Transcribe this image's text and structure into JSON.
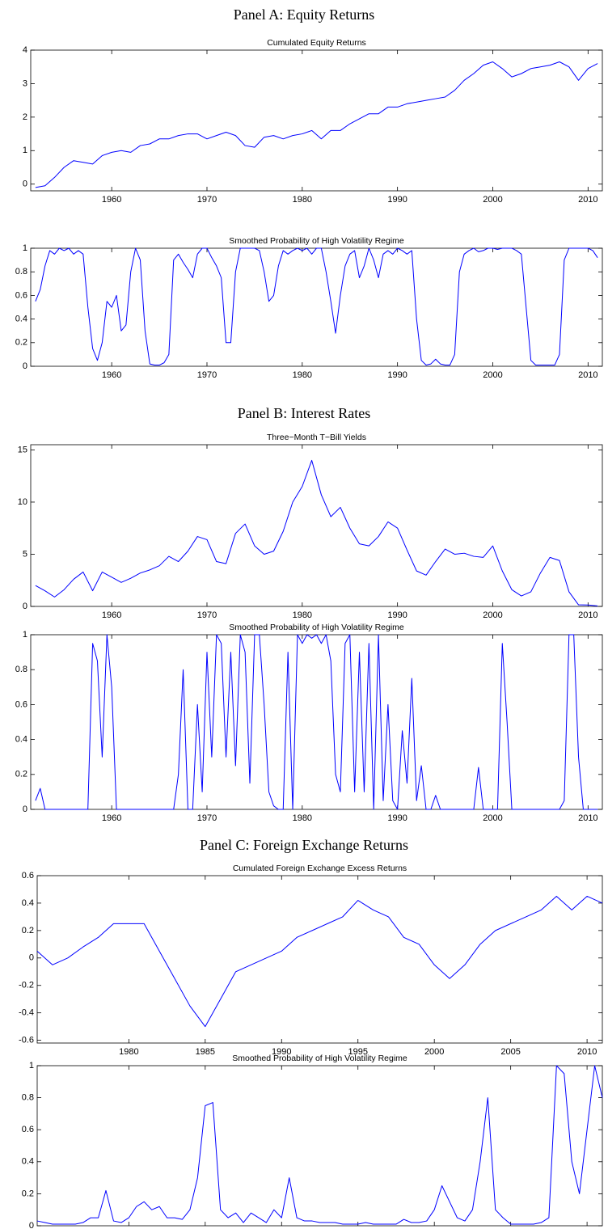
{
  "panels": [
    "Panel A: Equity Returns",
    "Panel B: Interest Rates",
    "Panel C: Foreign Exchange Returns"
  ],
  "chart_data": [
    {
      "type": "line",
      "title": "Cumulated Equity Returns",
      "color": "#0000ff",
      "x": [
        1952,
        1953,
        1954,
        1955,
        1956,
        1957,
        1958,
        1959,
        1960,
        1961,
        1962,
        1963,
        1964,
        1965,
        1966,
        1967,
        1968,
        1969,
        1970,
        1971,
        1972,
        1973,
        1974,
        1975,
        1976,
        1977,
        1978,
        1979,
        1980,
        1981,
        1982,
        1983,
        1984,
        1985,
        1986,
        1987,
        1988,
        1989,
        1990,
        1991,
        1992,
        1993,
        1994,
        1995,
        1996,
        1997,
        1998,
        1999,
        2000,
        2001,
        2002,
        2003,
        2004,
        2005,
        2006,
        2007,
        2008,
        2009,
        2010,
        2011
      ],
      "values": [
        -0.1,
        -0.05,
        0.2,
        0.5,
        0.7,
        0.65,
        0.6,
        0.85,
        0.95,
        1.0,
        0.95,
        1.15,
        1.2,
        1.35,
        1.35,
        1.45,
        1.5,
        1.5,
        1.35,
        1.45,
        1.55,
        1.45,
        1.15,
        1.1,
        1.4,
        1.45,
        1.35,
        1.45,
        1.5,
        1.6,
        1.35,
        1.6,
        1.6,
        1.8,
        1.95,
        2.1,
        2.1,
        2.3,
        2.3,
        2.4,
        2.45,
        2.5,
        2.55,
        2.6,
        2.8,
        3.1,
        3.3,
        3.55,
        3.65,
        3.45,
        3.2,
        3.3,
        3.45,
        3.5,
        3.55,
        3.65,
        3.5,
        3.1,
        3.45,
        3.6
      ],
      "xlim": [
        1951.5,
        2011.5
      ],
      "xticks": [
        1960,
        1970,
        1980,
        1990,
        2000,
        2010
      ],
      "ylim": [
        -0.2,
        4
      ],
      "yticks": [
        0,
        1,
        2,
        3,
        4
      ]
    },
    {
      "type": "line",
      "title": "Smoothed Probability of High Volatility Regime",
      "color": "#0000ff",
      "x": [
        1952,
        1952.5,
        1953,
        1953.5,
        1954,
        1954.5,
        1955,
        1955.5,
        1956,
        1956.5,
        1957,
        1957.5,
        1958,
        1958.5,
        1959,
        1959.5,
        1960,
        1960.5,
        1961,
        1961.5,
        1962,
        1962.5,
        1963,
        1963.5,
        1964,
        1964.5,
        1965,
        1965.5,
        1966,
        1966.5,
        1967,
        1967.5,
        1968,
        1968.5,
        1969,
        1969.5,
        1970,
        1970.5,
        1971,
        1971.5,
        1972,
        1972.5,
        1973,
        1973.5,
        1974,
        1974.5,
        1975,
        1975.5,
        1976,
        1976.5,
        1977,
        1977.5,
        1978,
        1978.5,
        1979,
        1979.5,
        1980,
        1980.5,
        1981,
        1981.5,
        1982,
        1982.5,
        1983,
        1983.5,
        1984,
        1984.5,
        1985,
        1985.5,
        1986,
        1986.5,
        1987,
        1987.5,
        1988,
        1988.5,
        1989,
        1989.5,
        1990,
        1990.5,
        1991,
        1991.5,
        1992,
        1992.5,
        1993,
        1993.5,
        1994,
        1994.5,
        1995,
        1995.5,
        1996,
        1996.5,
        1997,
        1997.5,
        1998,
        1998.5,
        1999,
        1999.5,
        2000,
        2000.5,
        2001,
        2001.5,
        2002,
        2002.5,
        2003,
        2003.5,
        2004,
        2004.5,
        2005,
        2005.5,
        2006,
        2006.5,
        2007,
        2007.5,
        2008,
        2008.5,
        2009,
        2009.5,
        2010,
        2010.5,
        2011
      ],
      "values": [
        0.55,
        0.65,
        0.85,
        0.98,
        0.95,
        1.0,
        0.98,
        1.0,
        0.95,
        0.98,
        0.95,
        0.5,
        0.15,
        0.05,
        0.2,
        0.55,
        0.5,
        0.6,
        0.3,
        0.35,
        0.8,
        1.0,
        0.9,
        0.3,
        0.02,
        0.01,
        0.01,
        0.03,
        0.1,
        0.9,
        0.95,
        0.88,
        0.82,
        0.75,
        0.95,
        1.0,
        1.0,
        0.92,
        0.85,
        0.75,
        0.2,
        0.2,
        0.8,
        1.0,
        1.0,
        1.0,
        1.0,
        0.98,
        0.8,
        0.55,
        0.6,
        0.85,
        0.98,
        0.95,
        0.98,
        1.0,
        0.98,
        1.0,
        0.95,
        1.0,
        1.0,
        0.8,
        0.55,
        0.28,
        0.6,
        0.85,
        0.95,
        0.98,
        0.75,
        0.85,
        1.0,
        0.9,
        0.75,
        0.95,
        0.98,
        0.95,
        1.0,
        0.98,
        0.95,
        0.98,
        0.4,
        0.05,
        0.01,
        0.02,
        0.06,
        0.02,
        0.01,
        0.01,
        0.1,
        0.8,
        0.95,
        0.98,
        1.0,
        0.97,
        0.98,
        1.0,
        1.0,
        0.99,
        1.0,
        1.0,
        1.0,
        0.98,
        0.95,
        0.5,
        0.05,
        0.01,
        0.01,
        0.01,
        0.01,
        0.01,
        0.1,
        0.9,
        1.0,
        1.0,
        1.0,
        1.0,
        1.0,
        0.98,
        0.92
      ],
      "xlim": [
        1951.5,
        2011.5
      ],
      "xticks": [
        1960,
        1970,
        1980,
        1990,
        2000,
        2010
      ],
      "ylim": [
        0,
        1
      ],
      "yticks": [
        0,
        0.2,
        0.4,
        0.6,
        0.8,
        1
      ]
    },
    {
      "type": "line",
      "title": "Three−Month T−Bill Yields",
      "color": "#0000ff",
      "x": [
        1952,
        1953,
        1954,
        1955,
        1956,
        1957,
        1958,
        1959,
        1960,
        1961,
        1962,
        1963,
        1964,
        1965,
        1966,
        1967,
        1968,
        1969,
        1970,
        1971,
        1972,
        1973,
        1974,
        1975,
        1976,
        1977,
        1978,
        1979,
        1980,
        1981,
        1982,
        1983,
        1984,
        1985,
        1986,
        1987,
        1988,
        1989,
        1990,
        1991,
        1992,
        1993,
        1994,
        1995,
        1996,
        1997,
        1998,
        1999,
        2000,
        2001,
        2002,
        2003,
        2004,
        2005,
        2006,
        2007,
        2008,
        2009,
        2010,
        2011
      ],
      "values": [
        2.0,
        1.5,
        0.9,
        1.6,
        2.6,
        3.3,
        1.5,
        3.3,
        2.8,
        2.3,
        2.7,
        3.2,
        3.5,
        3.9,
        4.8,
        4.3,
        5.3,
        6.7,
        6.4,
        4.3,
        4.1,
        7.0,
        7.9,
        5.8,
        5.0,
        5.3,
        7.2,
        10.0,
        11.5,
        14.0,
        10.7,
        8.6,
        9.5,
        7.5,
        6.0,
        5.8,
        6.7,
        8.1,
        7.5,
        5.4,
        3.4,
        3.0,
        4.3,
        5.5,
        5.0,
        5.1,
        4.8,
        4.7,
        5.8,
        3.4,
        1.6,
        1.0,
        1.4,
        3.2,
        4.7,
        4.4,
        1.4,
        0.15,
        0.14,
        0.05
      ],
      "xlim": [
        1951.5,
        2011.5
      ],
      "xticks": [
        1960,
        1970,
        1980,
        1990,
        2000,
        2010
      ],
      "ylim": [
        0,
        15.5
      ],
      "yticks": [
        0,
        5,
        10,
        15
      ]
    },
    {
      "type": "line",
      "title": "Smoothed Probability of High Volatility Regime",
      "color": "#0000ff",
      "x": [
        1952,
        1952.5,
        1953,
        1953.5,
        1954,
        1954.5,
        1955,
        1955.5,
        1956,
        1956.5,
        1957,
        1957.5,
        1958,
        1958.5,
        1959,
        1959.5,
        1960,
        1960.5,
        1961,
        1961.5,
        1962,
        1962.5,
        1963,
        1963.5,
        1964,
        1964.5,
        1965,
        1965.5,
        1966,
        1966.5,
        1967,
        1967.5,
        1968,
        1968.5,
        1969,
        1969.5,
        1970,
        1970.5,
        1971,
        1971.5,
        1972,
        1972.5,
        1973,
        1973.5,
        1974,
        1974.5,
        1975,
        1975.5,
        1976,
        1976.5,
        1977,
        1977.5,
        1978,
        1978.5,
        1979,
        1979.5,
        1980,
        1980.5,
        1981,
        1981.5,
        1982,
        1982.5,
        1983,
        1983.5,
        1984,
        1984.5,
        1985,
        1985.5,
        1986,
        1986.5,
        1987,
        1987.5,
        1988,
        1988.5,
        1989,
        1989.5,
        1990,
        1990.5,
        1991,
        1991.5,
        1992,
        1992.5,
        1993,
        1993.5,
        1994,
        1994.5,
        1995,
        1995.5,
        1996,
        1996.5,
        1997,
        1997.5,
        1998,
        1998.5,
        1999,
        1999.5,
        2000,
        2000.5,
        2001,
        2001.5,
        2002,
        2002.5,
        2003,
        2003.5,
        2004,
        2004.5,
        2005,
        2005.5,
        2006,
        2006.5,
        2007,
        2007.5,
        2008,
        2008.5,
        2009,
        2009.5,
        2010,
        2010.5,
        2011
      ],
      "values": [
        0.05,
        0.12,
        0,
        0,
        0,
        0,
        0,
        0,
        0,
        0,
        0,
        0,
        0.95,
        0.85,
        0.3,
        1.0,
        0.7,
        0,
        0,
        0,
        0,
        0,
        0,
        0,
        0,
        0,
        0,
        0,
        0,
        0,
        0.2,
        0.8,
        0,
        0,
        0.6,
        0.1,
        0.9,
        0.3,
        1.0,
        0.95,
        0.3,
        0.9,
        0.25,
        1.0,
        0.9,
        0.15,
        1.0,
        1.0,
        0.6,
        0.1,
        0.02,
        0,
        0,
        0.9,
        0,
        1.0,
        0.95,
        1.0,
        0.98,
        1.0,
        0.95,
        1.0,
        0.85,
        0.2,
        0.1,
        0.95,
        1.0,
        0.1,
        0.9,
        0.1,
        0.95,
        0,
        1.0,
        0.05,
        0.6,
        0.05,
        0,
        0.45,
        0.15,
        0.75,
        0.05,
        0.25,
        0,
        0,
        0.08,
        0,
        0,
        0,
        0,
        0,
        0,
        0,
        0,
        0.24,
        0,
        0,
        0,
        0,
        0.95,
        0.5,
        0,
        0,
        0,
        0,
        0,
        0,
        0,
        0,
        0,
        0,
        0,
        0.05,
        1.0,
        1.0,
        0.3,
        0,
        0,
        0,
        0
      ],
      "xlim": [
        1951.5,
        2011.5
      ],
      "xticks": [
        1960,
        1970,
        1980,
        1990,
        2000,
        2010
      ],
      "ylim": [
        0,
        1
      ],
      "yticks": [
        0,
        0.2,
        0.4,
        0.6,
        0.8,
        1
      ]
    },
    {
      "type": "line",
      "title": "Cumulated Foreign Exchange Excess Returns",
      "color": "#0000ff",
      "x": [
        1974,
        1975,
        1976,
        1977,
        1978,
        1979,
        1980,
        1981,
        1982,
        1983,
        1984,
        1985,
        1986,
        1987,
        1988,
        1989,
        1990,
        1991,
        1992,
        1993,
        1994,
        1995,
        1996,
        1997,
        1998,
        1999,
        2000,
        2001,
        2002,
        2003,
        2004,
        2005,
        2006,
        2007,
        2008,
        2009,
        2010,
        2011
      ],
      "values": [
        0.05,
        -0.05,
        0.0,
        0.08,
        0.15,
        0.25,
        0.25,
        0.25,
        0.05,
        -0.15,
        -0.35,
        -0.5,
        -0.3,
        -0.1,
        -0.05,
        0.0,
        0.05,
        0.15,
        0.2,
        0.25,
        0.3,
        0.42,
        0.35,
        0.3,
        0.15,
        0.1,
        -0.05,
        -0.15,
        -0.05,
        0.1,
        0.2,
        0.25,
        0.3,
        0.35,
        0.45,
        0.35,
        0.45,
        0.4
      ],
      "xlim": [
        1974,
        2011
      ],
      "xticks": [
        1980,
        1985,
        1990,
        1995,
        2000,
        2005,
        2010
      ],
      "ylim": [
        -0.62,
        0.6
      ],
      "yticks": [
        -0.6,
        -0.4,
        -0.2,
        0,
        0.2,
        0.4,
        0.6
      ]
    },
    {
      "type": "line",
      "title": "Smoothed Probability of High Volatility Regime",
      "color": "#0000ff",
      "x": [
        1974,
        1974.5,
        1975,
        1975.5,
        1976,
        1976.5,
        1977,
        1977.5,
        1978,
        1978.5,
        1979,
        1979.5,
        1980,
        1980.5,
        1981,
        1981.5,
        1982,
        1982.5,
        1983,
        1983.5,
        1984,
        1984.5,
        1985,
        1985.5,
        1986,
        1986.5,
        1987,
        1987.5,
        1988,
        1988.5,
        1989,
        1989.5,
        1990,
        1990.5,
        1991,
        1991.5,
        1992,
        1992.5,
        1993,
        1993.5,
        1994,
        1994.5,
        1995,
        1995.5,
        1996,
        1996.5,
        1997,
        1997.5,
        1998,
        1998.5,
        1999,
        1999.5,
        2000,
        2000.5,
        2001,
        2001.5,
        2002,
        2002.5,
        2003,
        2003.5,
        2004,
        2004.5,
        2005,
        2005.5,
        2006,
        2006.5,
        2007,
        2007.5,
        2008,
        2008.5,
        2009,
        2009.5,
        2010,
        2010.5,
        2011
      ],
      "values": [
        0.03,
        0.02,
        0.01,
        0.01,
        0.01,
        0.01,
        0.02,
        0.05,
        0.05,
        0.22,
        0.03,
        0.02,
        0.05,
        0.12,
        0.15,
        0.1,
        0.12,
        0.05,
        0.05,
        0.04,
        0.1,
        0.3,
        0.75,
        0.77,
        0.1,
        0.05,
        0.08,
        0.02,
        0.08,
        0.05,
        0.02,
        0.1,
        0.05,
        0.3,
        0.05,
        0.03,
        0.03,
        0.02,
        0.02,
        0.02,
        0.01,
        0.01,
        0.01,
        0.02,
        0.01,
        0.01,
        0.01,
        0.01,
        0.04,
        0.02,
        0.02,
        0.03,
        0.1,
        0.25,
        0.15,
        0.05,
        0.03,
        0.1,
        0.4,
        0.8,
        0.1,
        0.05,
        0.01,
        0.01,
        0.01,
        0.01,
        0.02,
        0.05,
        1.0,
        0.95,
        0.4,
        0.2,
        0.6,
        1.0,
        0.8
      ],
      "xlim": [
        1974,
        2011
      ],
      "xticks": [
        1980,
        1985,
        1990,
        1995,
        2000,
        2005,
        2010
      ],
      "ylim": [
        0,
        1
      ],
      "yticks": [
        0,
        0.2,
        0.4,
        0.6,
        0.8,
        1
      ]
    }
  ]
}
